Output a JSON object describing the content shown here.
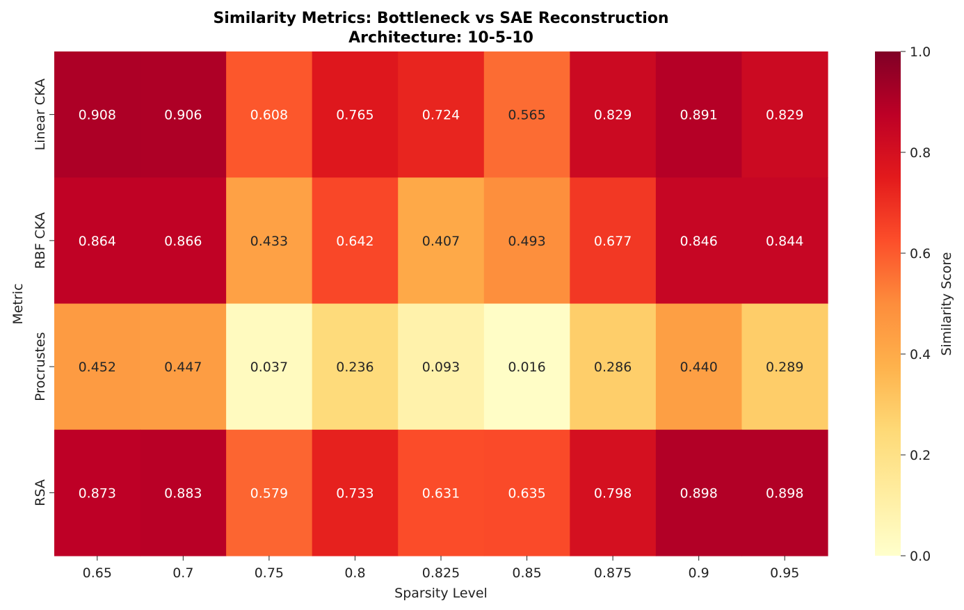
{
  "chart_data": {
    "type": "heatmap",
    "title": "Similarity Metrics: Bottleneck vs SAE Reconstruction",
    "subtitle": "Architecture: 10-5-10",
    "xlabel": "Sparsity Level",
    "ylabel": "Metric",
    "x_categories": [
      "0.65",
      "0.7",
      "0.75",
      "0.8",
      "0.825",
      "0.85",
      "0.875",
      "0.9",
      "0.95"
    ],
    "y_categories": [
      "Linear CKA",
      "RBF CKA",
      "Procrustes",
      "RSA"
    ],
    "values": [
      [
        0.908,
        0.906,
        0.608,
        0.765,
        0.724,
        0.565,
        0.829,
        0.891,
        0.829
      ],
      [
        0.864,
        0.866,
        0.433,
        0.642,
        0.407,
        0.493,
        0.677,
        0.846,
        0.844
      ],
      [
        0.452,
        0.447,
        0.037,
        0.236,
        0.093,
        0.016,
        0.286,
        0.44,
        0.289
      ],
      [
        0.873,
        0.883,
        0.579,
        0.733,
        0.631,
        0.635,
        0.798,
        0.898,
        0.898
      ]
    ],
    "value_labels": [
      [
        "0.908",
        "0.906",
        "0.608",
        "0.765",
        "0.724",
        "0.565",
        "0.829",
        "0.891",
        "0.829"
      ],
      [
        "0.864",
        "0.866",
        "0.433",
        "0.642",
        "0.407",
        "0.493",
        "0.677",
        "0.846",
        "0.844"
      ],
      [
        "0.452",
        "0.447",
        "0.037",
        "0.236",
        "0.093",
        "0.016",
        "0.286",
        "0.440",
        "0.289"
      ],
      [
        "0.873",
        "0.883",
        "0.579",
        "0.733",
        "0.631",
        "0.635",
        "0.798",
        "0.898",
        "0.898"
      ]
    ],
    "colormap": "YlOrRd",
    "colorbar": {
      "label": "Similarity Score",
      "range": [
        0.0,
        1.0
      ],
      "ticks": [
        "0.0",
        "0.2",
        "0.4",
        "0.6",
        "0.8",
        "1.0"
      ]
    },
    "grid": false
  }
}
